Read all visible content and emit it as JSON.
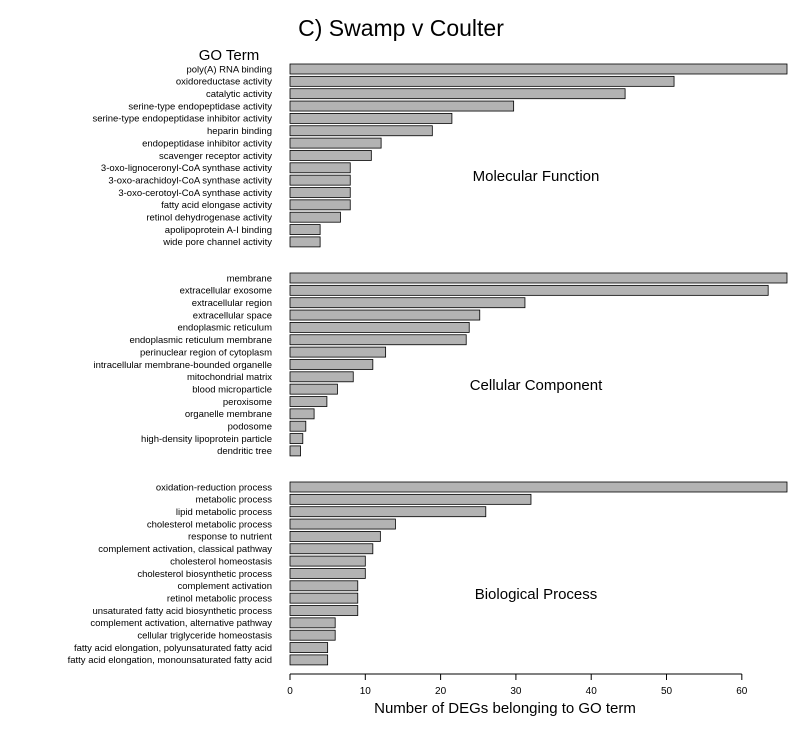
{
  "chart_data": {
    "type": "bar",
    "orientation": "horizontal",
    "title": "C) Swamp v Coulter",
    "label_header": "GO Term",
    "xlabel": "Number of DEGs belonging to GO term",
    "xlim": [
      0,
      66
    ],
    "xticks": [
      0,
      10,
      20,
      30,
      40,
      50,
      60
    ],
    "groups": [
      {
        "name": "Molecular Function",
        "categories": [
          "poly(A) RNA binding",
          "oxidoreductase activity",
          "catalytic activity",
          "serine-type endopeptidase activity",
          "serine-type endopeptidase inhibitor activity",
          "heparin binding",
          "endopeptidase inhibitor activity",
          "scavenger receptor activity",
          "3-oxo-lignoceronyl-CoA synthase activity",
          "3-oxo-arachidoyl-CoA synthase activity",
          "3-oxo-cerotoyl-CoA synthase activity",
          "fatty acid elongase activity",
          "retinol dehydrogenase activity",
          "apolipoprotein A-I binding",
          "wide pore channel activity"
        ],
        "values": [
          66,
          51,
          44.5,
          29.7,
          21.5,
          18.9,
          12.1,
          10.8,
          8,
          8,
          8,
          8,
          6.7,
          4,
          4
        ]
      },
      {
        "name": "Cellular Component",
        "categories": [
          "membrane",
          "extracellular exosome",
          "extracellular region",
          "extracellular space",
          "endoplasmic reticulum",
          "endoplasmic reticulum membrane",
          "perinuclear region of cytoplasm",
          "intracellular membrane-bounded organelle",
          "mitochondrial matrix",
          "blood microparticle",
          "peroxisome",
          "organelle membrane",
          "podosome",
          "high-density lipoprotein particle",
          "dendritic tree"
        ],
        "values": [
          66,
          63.5,
          31.2,
          25.2,
          23.8,
          23.4,
          12.7,
          11,
          8.4,
          6.3,
          4.9,
          3.2,
          2.1,
          1.7,
          1.4
        ]
      },
      {
        "name": "Biological Process",
        "categories": [
          "oxidation-reduction process",
          "metabolic process",
          "lipid metabolic process",
          "cholesterol metabolic process",
          "response to nutrient",
          "complement activation, classical pathway",
          "cholesterol homeostasis",
          "cholesterol biosynthetic process",
          "complement activation",
          "retinol metabolic process",
          "unsaturated fatty acid biosynthetic process",
          "complement activation, alternative pathway",
          "cellular triglyceride homeostasis",
          "fatty acid elongation, polyunsaturated fatty acid",
          "fatty acid elongation, monounsaturated fatty acid"
        ],
        "values": [
          66,
          32,
          26,
          14,
          12,
          11,
          10,
          10,
          9,
          9,
          9,
          6,
          6,
          5,
          5
        ]
      }
    ],
    "bar_color": "#b3b3b3",
    "grid": false,
    "legend": "none"
  }
}
